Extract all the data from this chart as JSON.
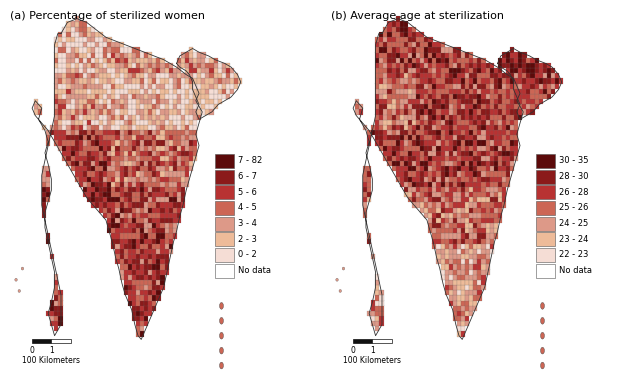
{
  "title_a": "(a) Percentage of sterilized women",
  "title_b": "(b) Average age at sterilization",
  "fig_bg": "#ffffff",
  "legend_a": {
    "labels": [
      "7 - 82",
      "6 - 7",
      "5 - 6",
      "4 - 5",
      "3 - 4",
      "2 - 3",
      "0 - 2",
      "No data"
    ],
    "colors": [
      "#5c0a0a",
      "#8b1a1a",
      "#b83232",
      "#cc6655",
      "#dd9988",
      "#eebb99",
      "#f5ddd5",
      "#ffffff"
    ]
  },
  "legend_b": {
    "labels": [
      "30 - 35",
      "28 - 30",
      "26 - 28",
      "25 - 26",
      "24 - 25",
      "23 - 24",
      "22 - 23",
      "No data"
    ],
    "colors": [
      "#5c0a0a",
      "#8b1a1a",
      "#b83232",
      "#cc6655",
      "#dd9988",
      "#eebb99",
      "#f5ddd5",
      "#ffffff"
    ]
  },
  "scalebar_label": "100 Kilometers",
  "title_fontsize": 8,
  "legend_fontsize": 6,
  "scalebar_fontsize": 5.5
}
